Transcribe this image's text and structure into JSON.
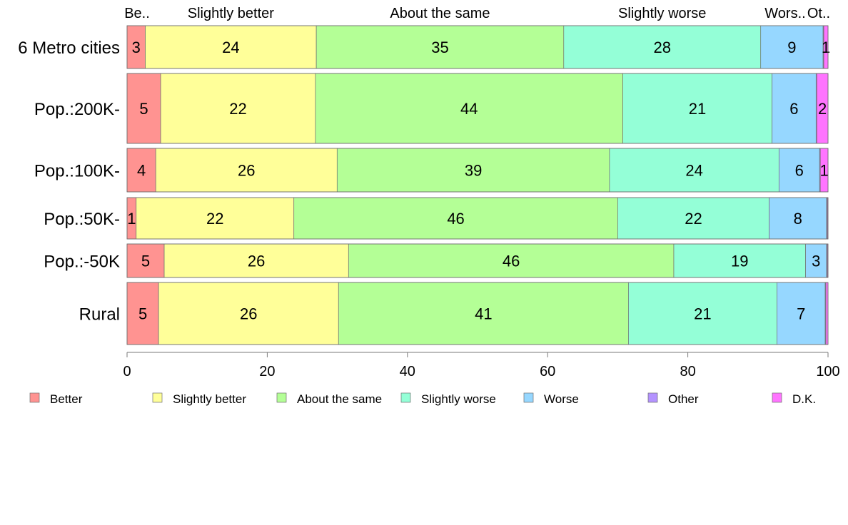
{
  "chart_data": {
    "type": "bar",
    "orientation": "horizontal",
    "stacked": true,
    "categories": [
      "6 Metro cities",
      "Pop.:200K-",
      "Pop.:100K-",
      "Pop.:50K-",
      "Pop.:-50K",
      "Rural"
    ],
    "series": [
      {
        "name": "Better",
        "color": "#ff9391",
        "values": [
          2.6,
          4.8,
          4.1,
          1.3,
          5.3,
          4.5
        ]
      },
      {
        "name": "Slightly better",
        "color": "#ffff99",
        "values": [
          24.4,
          22.1,
          25.9,
          22.5,
          26.3,
          25.7
        ]
      },
      {
        "name": "About the same",
        "color": "#b4ff96",
        "values": [
          35.3,
          43.9,
          38.9,
          46.2,
          46.4,
          41.4
        ]
      },
      {
        "name": "Slightly worse",
        "color": "#94ffd7",
        "values": [
          28.1,
          21.3,
          24.2,
          21.6,
          18.8,
          21.2
        ]
      },
      {
        "name": "Worse",
        "color": "#96d7ff",
        "values": [
          8.9,
          6.3,
          5.8,
          8.2,
          3.0,
          6.9
        ]
      },
      {
        "name": "Other",
        "color": "#b493ff",
        "values": [
          0.1,
          0.1,
          0.1,
          0.1,
          0.1,
          0.1
        ]
      },
      {
        "name": "D.K.",
        "color": "#ff74ff",
        "values": [
          0.6,
          1.6,
          1.1,
          0.1,
          0.1,
          0.3
        ]
      }
    ],
    "data_labels": [
      [
        "3",
        "24",
        "35",
        "28",
        "9",
        "",
        "1"
      ],
      [
        "5",
        "22",
        "44",
        "21",
        "6",
        "",
        "2"
      ],
      [
        "4",
        "26",
        "39",
        "24",
        "6",
        "",
        "1"
      ],
      [
        "1",
        "22",
        "46",
        "22",
        "8",
        "",
        ""
      ],
      [
        "5",
        "26",
        "46",
        "19",
        "3",
        "",
        ""
      ],
      [
        "5",
        "26",
        "41",
        "21",
        "7",
        "",
        ""
      ]
    ],
    "top_labels": [
      "Be..",
      "Slightly better",
      "About the same",
      "Slightly worse",
      "Wors..",
      "Ot.."
    ],
    "top_label_series": [
      0,
      1,
      2,
      3,
      4,
      6
    ],
    "xlim": [
      0,
      100
    ],
    "xticks": [
      0,
      20,
      40,
      60,
      80,
      100
    ],
    "legend_position": "bottom",
    "grid": false,
    "title": "",
    "xlabel": "",
    "ylabel": ""
  }
}
